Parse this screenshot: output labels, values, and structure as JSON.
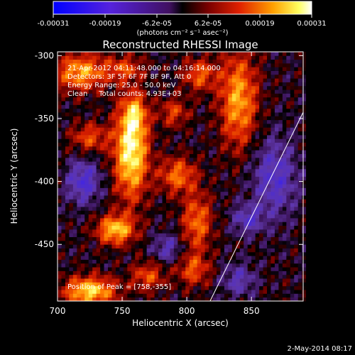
{
  "chart_data": {
    "type": "heatmap",
    "title": "Reconstructed RHESSI Image",
    "xlabel": "Heliocentric X (arcsec)",
    "ylabel": "Heliocentric Y (arcsec)",
    "xlim": [
      700,
      890
    ],
    "ylim": [
      -495,
      -297
    ],
    "x_ticks": [
      700,
      750,
      800,
      850
    ],
    "x_tick_labels": [
      "700",
      "750",
      "800",
      "850"
    ],
    "y_ticks": [
      -300,
      -350,
      -400,
      -450
    ],
    "y_tick_labels": [
      "-300",
      "-350",
      "-400",
      "-450"
    ],
    "colorbar": {
      "colormap": "blue-purple-red-yellow-white",
      "range": [
        -0.00031,
        0.00031
      ],
      "ticks": [
        -0.00031,
        -0.00019,
        -6.2e-05,
        6.2e-05,
        0.00019,
        0.00031
      ],
      "tick_labels": [
        "-0.00031",
        "-0.00019",
        "-6.2e-05",
        "6.2e-05",
        "0.00019",
        "0.00031"
      ],
      "unit_label": "(photons cm⁻² s⁻¹ asec⁻²)"
    },
    "annotations": [
      "21-Apr-2012 04:11:48.000 to 04:16:14.000",
      "Detectors: 3F 5F 6F 7F 8F 9F, Att 0",
      "Energy Range: 25.0 - 50.0 keV",
      "Clean     Total counts: 4.93E+03"
    ],
    "peak_label": "Position of Peak = [758,-355]",
    "peak": [
      758,
      -355
    ],
    "limb_line": [
      [
        818,
        -495
      ],
      [
        890,
        -345
      ]
    ],
    "sources": [
      {
        "x": 757,
        "y": -375,
        "sx": 9,
        "sy": 26,
        "amp": 1.0
      },
      {
        "x": 760,
        "y": -346,
        "sx": 6,
        "sy": 10,
        "amp": 0.45
      },
      {
        "x": 745,
        "y": -438,
        "sx": 10,
        "sy": 8,
        "amp": 0.8
      },
      {
        "x": 725,
        "y": -487,
        "sx": 14,
        "sy": 8,
        "amp": 0.85
      },
      {
        "x": 718,
        "y": -313,
        "sx": 14,
        "sy": 10,
        "amp": 0.7
      },
      {
        "x": 725,
        "y": -365,
        "sx": 10,
        "sy": 8,
        "amp": 0.45
      },
      {
        "x": 840,
        "y": -335,
        "sx": 10,
        "sy": 26,
        "amp": 0.7
      },
      {
        "x": 793,
        "y": -395,
        "sx": 10,
        "sy": 10,
        "amp": 0.55
      },
      {
        "x": 810,
        "y": -315,
        "sx": 9,
        "sy": 9,
        "amp": 0.5
      },
      {
        "x": 808,
        "y": -432,
        "sx": 8,
        "sy": 16,
        "amp": 0.55
      },
      {
        "x": 770,
        "y": -475,
        "sx": 9,
        "sy": 8,
        "amp": 0.45
      },
      {
        "x": 805,
        "y": -470,
        "sx": 9,
        "sy": 9,
        "amp": 0.45
      },
      {
        "x": 790,
        "y": -345,
        "sx": 8,
        "sy": 8,
        "amp": 0.4
      },
      {
        "x": 752,
        "y": -310,
        "sx": 10,
        "sy": 7,
        "amp": 0.4
      },
      {
        "x": 868,
        "y": -397,
        "sx": 12,
        "sy": 22,
        "amp": -0.45
      },
      {
        "x": 720,
        "y": -400,
        "sx": 9,
        "sy": 12,
        "amp": -0.5
      },
      {
        "x": 847,
        "y": -430,
        "sx": 8,
        "sy": 8,
        "amp": -0.4
      },
      {
        "x": 840,
        "y": -478,
        "sx": 9,
        "sy": 9,
        "amp": -0.35
      },
      {
        "x": 785,
        "y": -453,
        "sx": 8,
        "sy": 8,
        "amp": -0.35
      }
    ]
  },
  "footer": {
    "date": "2-May-2014 08:17"
  }
}
